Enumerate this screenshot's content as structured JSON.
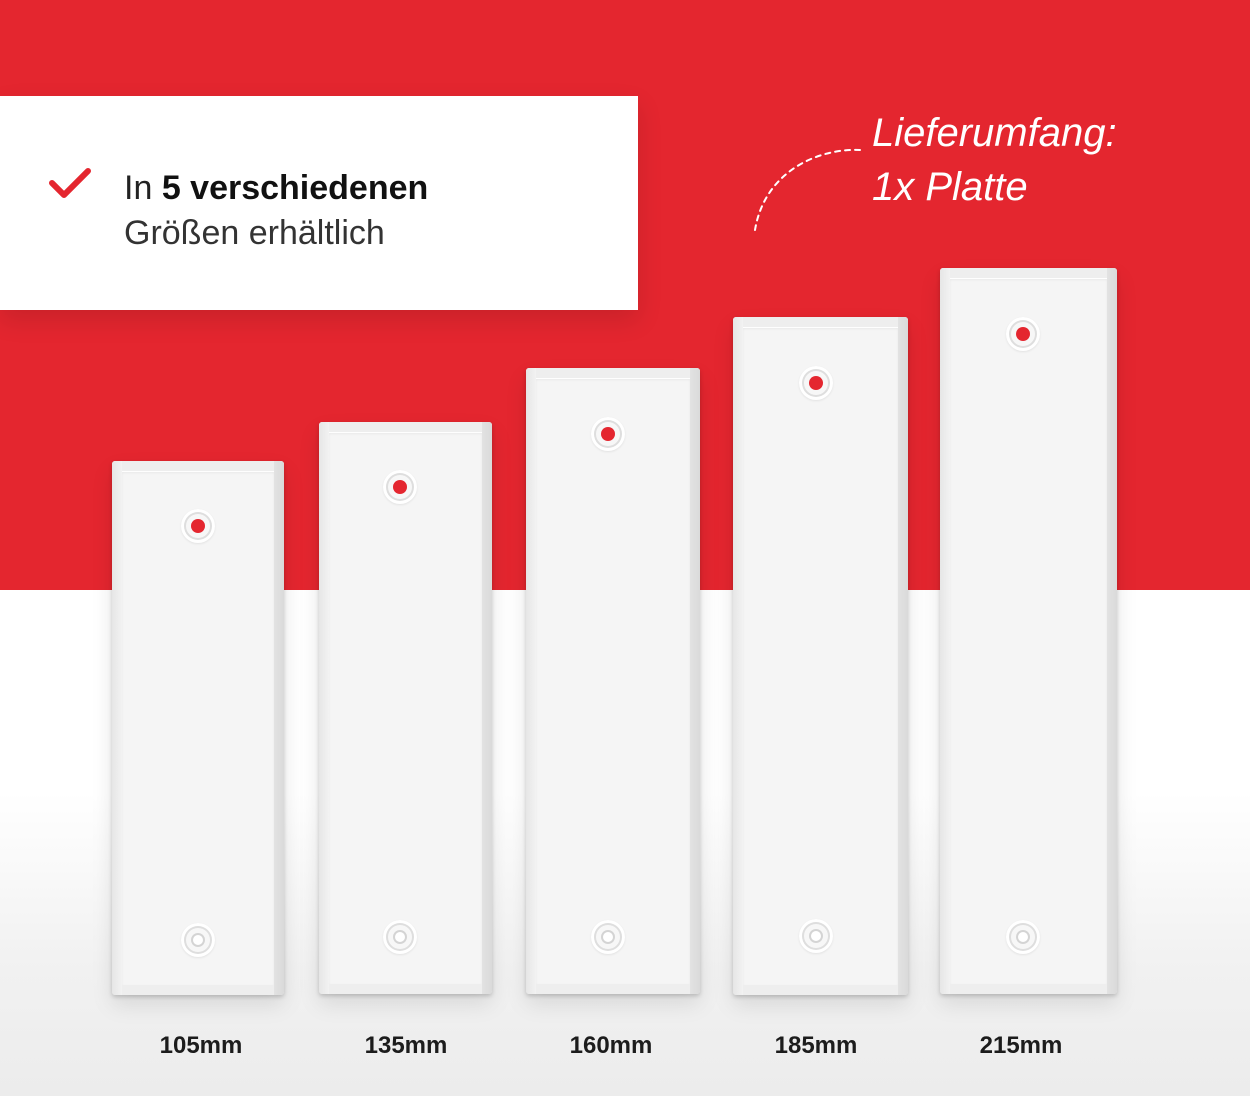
{
  "colors": {
    "accent": "#e4262f",
    "background": "#ffffff"
  },
  "info_card": {
    "check_icon": "checkmark-icon",
    "line1_prefix": "In",
    "line1_bold": "5 verschiedenen",
    "line2": "Größen erhältlich"
  },
  "delivery": {
    "line1": "Lieferumfang:",
    "line2": "1x Platte"
  },
  "plates": [
    {
      "label": "105mm"
    },
    {
      "label": "135mm"
    },
    {
      "label": "160mm"
    },
    {
      "label": "185mm"
    },
    {
      "label": "215mm"
    }
  ]
}
